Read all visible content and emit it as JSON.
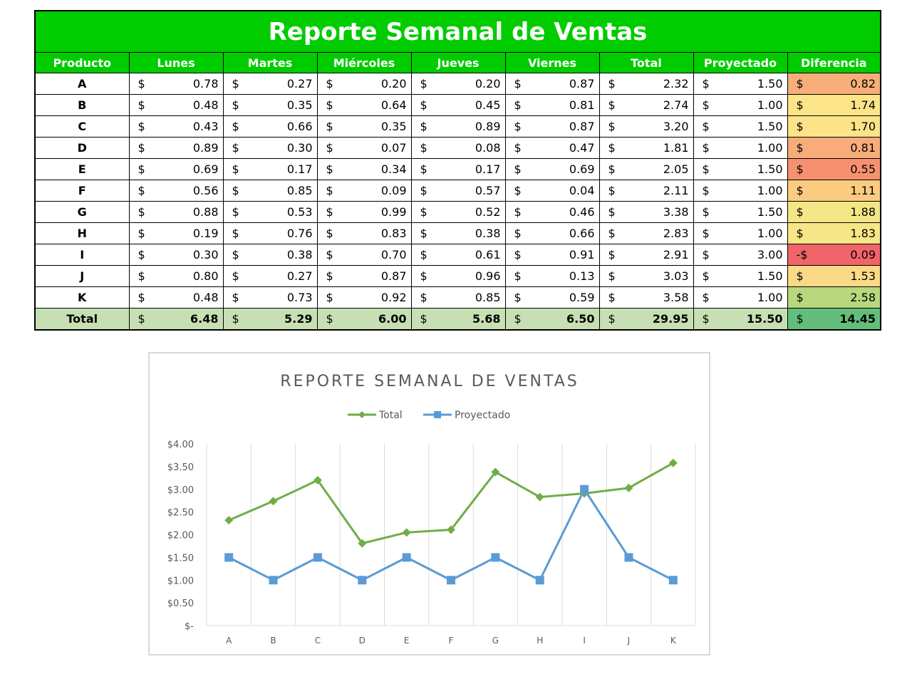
{
  "table": {
    "title": "Reporte Semanal de Ventas",
    "currency": "$",
    "headers": [
      "Producto",
      "Lunes",
      "Martes",
      "Miércoles",
      "Jueves",
      "Viernes",
      "Total",
      "Proyectado",
      "Diferencia"
    ],
    "rows": [
      {
        "product": "A",
        "values": [
          "0.78",
          "0.27",
          "0.20",
          "0.20",
          "0.87",
          "2.32",
          "1.50"
        ],
        "diff_sign": "$",
        "diff": "0.82",
        "diff_color": "#f8ae7a"
      },
      {
        "product": "B",
        "values": [
          "0.48",
          "0.35",
          "0.64",
          "0.45",
          "0.81",
          "2.74",
          "1.00"
        ],
        "diff_sign": "$",
        "diff": "1.74",
        "diff_color": "#fce588"
      },
      {
        "product": "C",
        "values": [
          "0.43",
          "0.66",
          "0.35",
          "0.89",
          "0.87",
          "3.20",
          "1.50"
        ],
        "diff_sign": "$",
        "diff": "1.70",
        "diff_color": "#fce388"
      },
      {
        "product": "D",
        "values": [
          "0.89",
          "0.30",
          "0.07",
          "0.08",
          "0.47",
          "1.81",
          "1.00"
        ],
        "diff_sign": "$",
        "diff": "0.81",
        "diff_color": "#f8ac7a"
      },
      {
        "product": "E",
        "values": [
          "0.69",
          "0.17",
          "0.34",
          "0.17",
          "0.69",
          "2.05",
          "1.50"
        ],
        "diff_sign": "$",
        "diff": "0.55",
        "diff_color": "#f6916f"
      },
      {
        "product": "F",
        "values": [
          "0.56",
          "0.85",
          "0.09",
          "0.57",
          "0.04",
          "2.11",
          "1.00"
        ],
        "diff_sign": "$",
        "diff": "1.11",
        "diff_color": "#fbcb80"
      },
      {
        "product": "G",
        "values": [
          "0.88",
          "0.53",
          "0.99",
          "0.52",
          "0.46",
          "3.38",
          "1.50"
        ],
        "diff_sign": "$",
        "diff": "1.88",
        "diff_color": "#f3e686"
      },
      {
        "product": "H",
        "values": [
          "0.19",
          "0.76",
          "0.83",
          "0.38",
          "0.66",
          "2.83",
          "1.00"
        ],
        "diff_sign": "$",
        "diff": "1.83",
        "diff_color": "#f6e687"
      },
      {
        "product": "I",
        "values": [
          "0.30",
          "0.38",
          "0.70",
          "0.61",
          "0.91",
          "2.91",
          "3.00"
        ],
        "diff_sign": "-$",
        "diff": "0.09",
        "diff_color": "#f0646a"
      },
      {
        "product": "J",
        "values": [
          "0.80",
          "0.27",
          "0.87",
          "0.96",
          "0.13",
          "3.03",
          "1.50"
        ],
        "diff_sign": "$",
        "diff": "1.53",
        "diff_color": "#fcd986"
      },
      {
        "product": "K",
        "values": [
          "0.48",
          "0.73",
          "0.92",
          "0.85",
          "0.59",
          "3.58",
          "1.00"
        ],
        "diff_sign": "$",
        "diff": "2.58",
        "diff_color": "#b8d77e"
      }
    ],
    "total_row": {
      "label": "Total",
      "values": [
        "6.48",
        "5.29",
        "6.00",
        "5.68",
        "6.50",
        "29.95",
        "15.50"
      ],
      "diff_sign": "$",
      "diff": "14.45",
      "diff_color": "#63be7b"
    }
  },
  "chart_data": {
    "type": "line",
    "title": "REPORTE SEMANAL DE VENTAS",
    "categories": [
      "A",
      "B",
      "C",
      "D",
      "E",
      "F",
      "G",
      "H",
      "I",
      "J",
      "K"
    ],
    "series": [
      {
        "name": "Total",
        "values": [
          2.32,
          2.74,
          3.2,
          1.81,
          2.05,
          2.11,
          3.38,
          2.83,
          2.91,
          3.03,
          3.58
        ],
        "color": "#70ad47",
        "marker": "diamond"
      },
      {
        "name": "Proyectado",
        "values": [
          1.5,
          1.0,
          1.5,
          1.0,
          1.5,
          1.0,
          1.5,
          1.0,
          3.0,
          1.5,
          1.0
        ],
        "color": "#5b9bd5",
        "marker": "square"
      }
    ],
    "ylim": [
      0,
      4
    ],
    "y_ticks": [
      0,
      0.5,
      1,
      1.5,
      2,
      2.5,
      3,
      3.5,
      4
    ],
    "y_tick_labels": [
      "$-",
      "$0.50",
      "$1.00",
      "$1.50",
      "$2.00",
      "$2.50",
      "$3.00",
      "$3.50",
      "$4.00"
    ],
    "grid": "vertical",
    "legend": "top"
  }
}
